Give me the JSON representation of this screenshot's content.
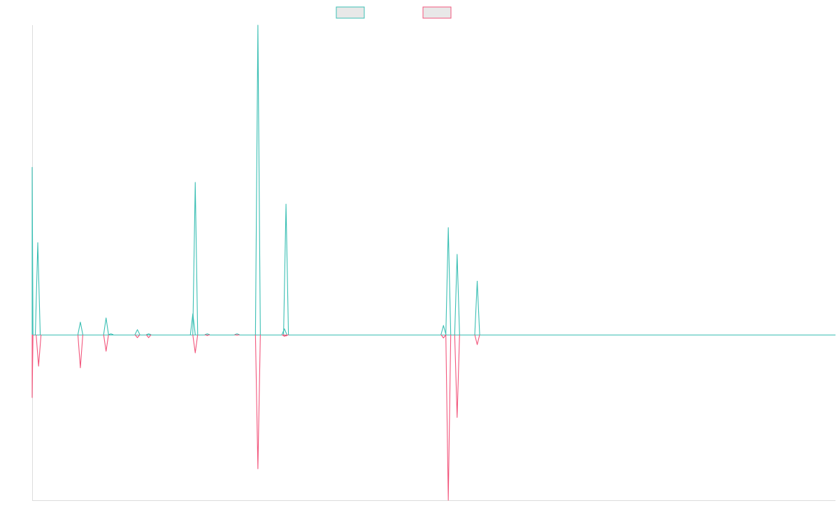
{
  "chart_data": {
    "type": "line",
    "title": "",
    "xlabel": "",
    "ylabel": "",
    "grid": false,
    "legend_position": "top-center",
    "x_range": [
      0,
      1000
    ],
    "ylim": [
      -1.0,
      1.85
    ],
    "series": [
      {
        "color": "#3bbfb4",
        "fill": "#e8e8e8",
        "points": [
          [
            0,
            1.0
          ],
          [
            7,
            0.55
          ],
          [
            60,
            0.075
          ],
          [
            92,
            0.1
          ],
          [
            98,
            0.005
          ],
          [
            131,
            0.03
          ],
          [
            145,
            0.005
          ],
          [
            200,
            0.125
          ],
          [
            203,
            0.91
          ],
          [
            218,
            0.005
          ],
          [
            255,
            0.005
          ],
          [
            281,
            1.85
          ],
          [
            314,
            0.035
          ],
          [
            316,
            0.78
          ],
          [
            512,
            0.055
          ],
          [
            518,
            0.64
          ],
          [
            529,
            0.48
          ],
          [
            554,
            0.32
          ]
        ]
      },
      {
        "color": "#f2567c",
        "fill": "#e8e8e8",
        "points": [
          [
            0,
            -0.38
          ],
          [
            8,
            -0.19
          ],
          [
            60,
            -0.2
          ],
          [
            92,
            -0.1
          ],
          [
            131,
            -0.018
          ],
          [
            145,
            -0.018
          ],
          [
            203,
            -0.11
          ],
          [
            218,
            -0.005
          ],
          [
            255,
            -0.003
          ],
          [
            281,
            -0.81
          ],
          [
            314,
            -0.01
          ],
          [
            316,
            -0.008
          ],
          [
            512,
            -0.02
          ],
          [
            518,
            -1.0
          ],
          [
            529,
            -0.5
          ],
          [
            554,
            -0.06
          ]
        ]
      }
    ]
  }
}
